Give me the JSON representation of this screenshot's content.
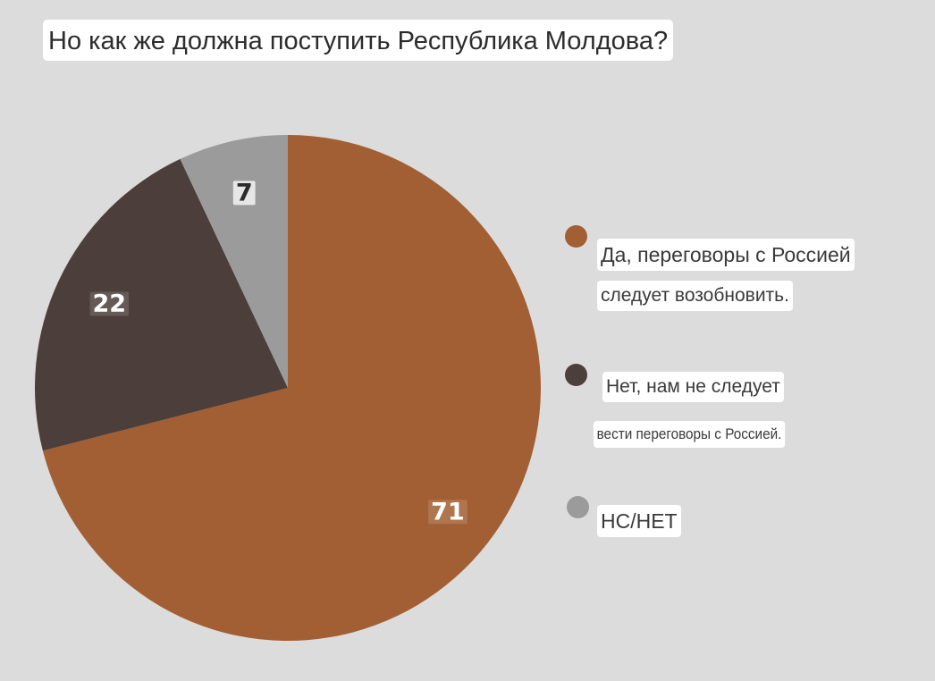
{
  "chart_data": {
    "type": "pie",
    "title": "Но как же должна поступить Республика Молдова?",
    "slices": [
      {
        "label_lines": [
          "Да, переговоры с Россией",
          "следует возобновить."
        ],
        "value": 71,
        "value_label": "71",
        "color": "#a25f33"
      },
      {
        "label_lines": [
          "Нет, нам не следует",
          "вести переговоры с Россией."
        ],
        "value": 22,
        "value_label": "22",
        "color": "#4c3f3b"
      },
      {
        "label_lines": [
          "НС/НЕТ"
        ],
        "value": 7,
        "value_label": "7",
        "color": "#9b9b9b"
      }
    ],
    "legend_position": "right",
    "start_angle": "12 o'clock",
    "direction": "clockwise"
  },
  "colors": {
    "background": "#dcdcdc",
    "label_box": "#ffffff"
  }
}
